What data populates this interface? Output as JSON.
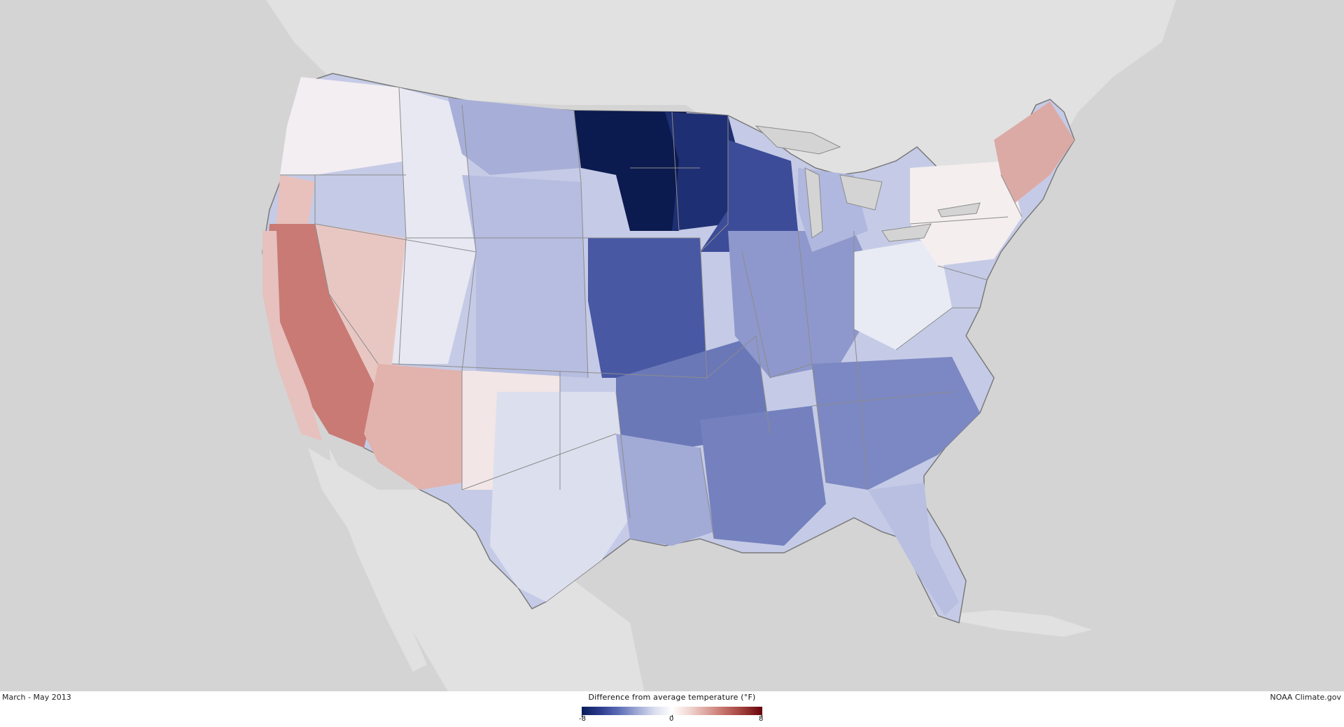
{
  "map": {
    "period_label": "March - May 2013",
    "credit": "NOAA Climate.gov",
    "legend": {
      "title": "Difference from average temperature (°F)",
      "min_label": "-8",
      "mid_label": "0",
      "max_label": "8",
      "min_value": -8,
      "mid_value": 0,
      "max_value": 8,
      "color_stops": [
        "#081d58",
        "#2c3a8c",
        "#5a6bb5",
        "#9aa5d2",
        "#d8dcee",
        "#ffffff",
        "#f0d4d0",
        "#dba09a",
        "#c16a63",
        "#9a3a35",
        "#67000d"
      ]
    },
    "colors": {
      "ocean": "#d4d4d4",
      "land_outside": "#e1e1e1",
      "state_border": "#8c8c8c",
      "footer_bg": "#ffffff"
    }
  }
}
